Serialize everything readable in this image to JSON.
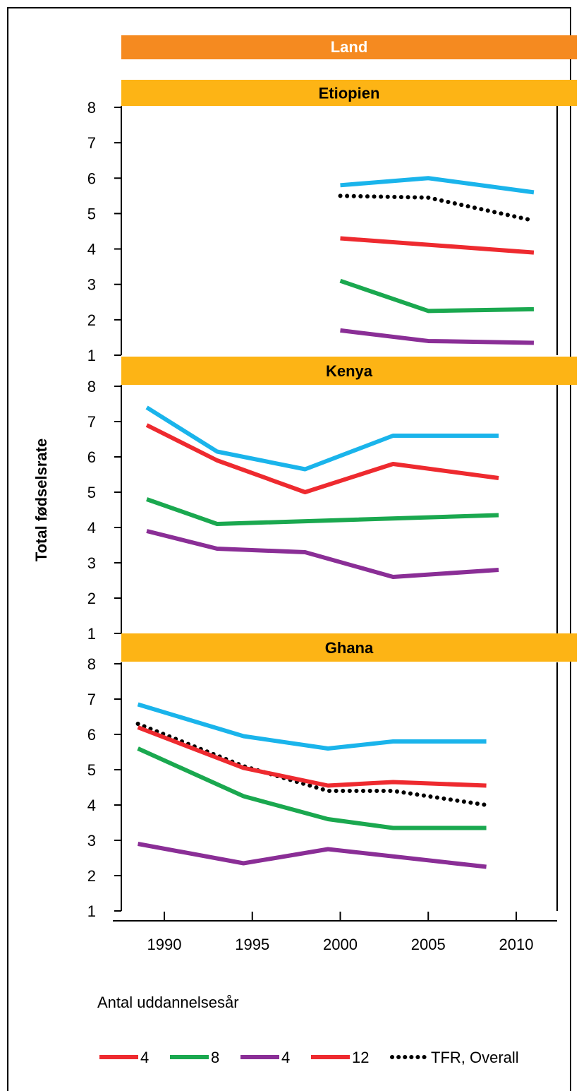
{
  "chart_data": {
    "type": "line",
    "header": "Land",
    "ylabel": "Total fødselsrate",
    "xlabel": "",
    "legend_title": "Antal uddannelsesår",
    "x_ticks": [
      1990,
      1995,
      2000,
      2005,
      2010
    ],
    "y_ticks": [
      1,
      2,
      3,
      4,
      5,
      6,
      7,
      8
    ],
    "ylim": [
      1,
      8
    ],
    "xlim": [
      1987.5,
      2012.3
    ],
    "legend_position": "bottom",
    "legend": [
      {
        "label": "4",
        "color": "#ee2a2f",
        "style": "solid"
      },
      {
        "label": "8",
        "color": "#1aa84f",
        "style": "solid"
      },
      {
        "label": "4",
        "color": "#8a2e96",
        "style": "solid"
      },
      {
        "label": "12",
        "color": "#ee2a2f",
        "style": "solid"
      },
      {
        "label": "TFR, Overall",
        "color": "#000000",
        "style": "dotted"
      }
    ],
    "colors": {
      "header": "#f58a20",
      "panel_header": "#fdb415"
    },
    "panels": [
      {
        "title": "Etiopien",
        "series": [
          {
            "color": "#1ab4eb",
            "style": "solid",
            "points": [
              [
                2000,
                5.8
              ],
              [
                2005,
                6.0
              ],
              [
                2011,
                5.6
              ]
            ]
          },
          {
            "color": "#000000",
            "style": "dotted",
            "points": [
              [
                2000,
                5.5
              ],
              [
                2005,
                5.45
              ],
              [
                2011,
                4.8
              ]
            ]
          },
          {
            "color": "#ee2a2f",
            "style": "solid",
            "points": [
              [
                2000,
                4.3
              ],
              [
                2011,
                3.9
              ]
            ]
          },
          {
            "color": "#1aa84f",
            "style": "solid",
            "points": [
              [
                2000,
                3.1
              ],
              [
                2005,
                2.25
              ],
              [
                2011,
                2.3
              ]
            ]
          },
          {
            "color": "#8a2e96",
            "style": "solid",
            "points": [
              [
                2000,
                1.7
              ],
              [
                2005,
                1.4
              ],
              [
                2011,
                1.35
              ]
            ]
          }
        ]
      },
      {
        "title": "Kenya",
        "series": [
          {
            "color": "#1ab4eb",
            "style": "solid",
            "points": [
              [
                1989,
                7.4
              ],
              [
                1993,
                6.15
              ],
              [
                1998,
                5.65
              ],
              [
                2003,
                6.6
              ],
              [
                2009,
                6.6
              ]
            ]
          },
          {
            "color": "#ee2a2f",
            "style": "solid",
            "points": [
              [
                1989,
                6.9
              ],
              [
                1993,
                5.9
              ],
              [
                1998,
                5.0
              ],
              [
                2003,
                5.8
              ],
              [
                2009,
                5.4
              ]
            ]
          },
          {
            "color": "#1aa84f",
            "style": "solid",
            "points": [
              [
                1989,
                4.8
              ],
              [
                1993,
                4.1
              ],
              [
                2009,
                4.35
              ]
            ]
          },
          {
            "color": "#8a2e96",
            "style": "solid",
            "points": [
              [
                1989,
                3.9
              ],
              [
                1993,
                3.4
              ],
              [
                1998,
                3.3
              ],
              [
                2003,
                2.6
              ],
              [
                2009,
                2.8
              ]
            ]
          }
        ]
      },
      {
        "title": "Ghana",
        "series": [
          {
            "color": "#1ab4eb",
            "style": "solid",
            "points": [
              [
                1988.5,
                6.85
              ],
              [
                1994.5,
                5.95
              ],
              [
                1999.3,
                5.6
              ],
              [
                2003,
                5.8
              ],
              [
                2008.3,
                5.8
              ]
            ]
          },
          {
            "color": "#000000",
            "style": "dotted",
            "points": [
              [
                1988.5,
                6.3
              ],
              [
                1994.5,
                5.1
              ],
              [
                1999.3,
                4.4
              ],
              [
                2003,
                4.4
              ],
              [
                2008.3,
                4.0
              ]
            ]
          },
          {
            "color": "#ee2a2f",
            "style": "solid",
            "points": [
              [
                1988.5,
                6.2
              ],
              [
                1994.5,
                5.05
              ],
              [
                1999.3,
                4.55
              ],
              [
                2003,
                4.65
              ],
              [
                2008.3,
                4.55
              ]
            ]
          },
          {
            "color": "#1aa84f",
            "style": "solid",
            "points": [
              [
                1988.5,
                5.6
              ],
              [
                1994.5,
                4.25
              ],
              [
                1999.3,
                3.6
              ],
              [
                2003,
                3.35
              ],
              [
                2008.3,
                3.35
              ]
            ]
          },
          {
            "color": "#8a2e96",
            "style": "solid",
            "points": [
              [
                1988.5,
                2.9
              ],
              [
                1994.5,
                2.35
              ],
              [
                1999.3,
                2.75
              ],
              [
                2008.3,
                2.25
              ]
            ]
          }
        ]
      }
    ]
  }
}
